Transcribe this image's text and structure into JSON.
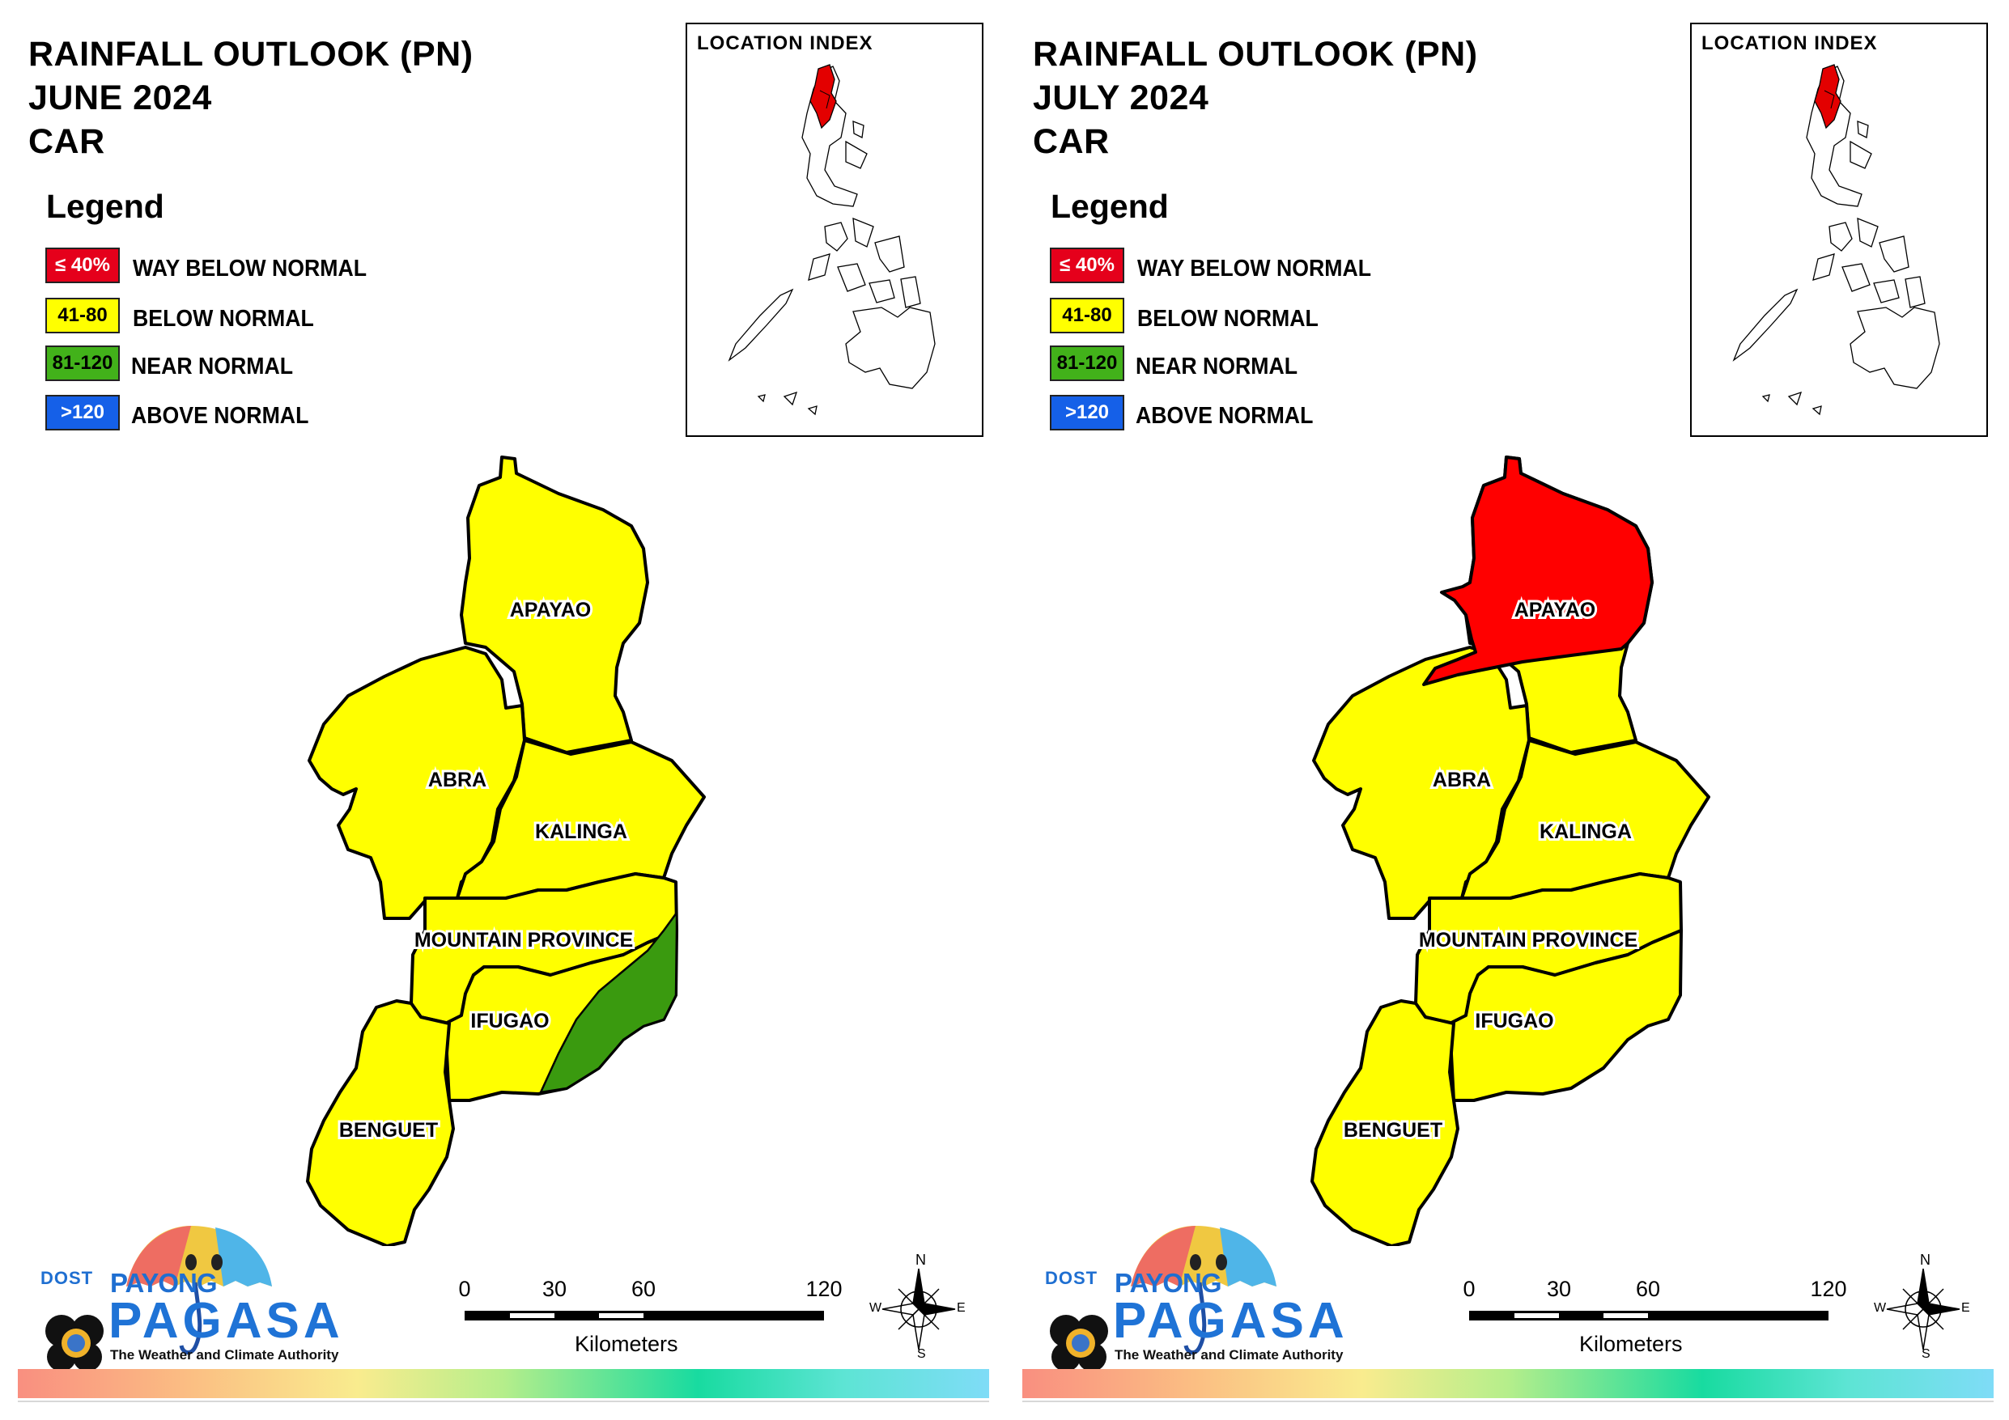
{
  "colors": {
    "way_below": "#ff0000",
    "below": "#ffff00",
    "near": "#41a516",
    "above": "#1560e8",
    "near_map": "#3a9a0f",
    "border": "#000000"
  },
  "legend": {
    "title": "Legend",
    "items": [
      {
        "range": "≤ 40%",
        "label": "WAY BELOW NORMAL",
        "color": "#e5001b",
        "text_color": "#ffffff"
      },
      {
        "range": "41-80",
        "label": "BELOW NORMAL",
        "color": "#ffff00",
        "text_color": "#000000"
      },
      {
        "range": "81-120",
        "label": "NEAR NORMAL",
        "color": "#42b21a",
        "text_color": "#000000"
      },
      {
        "range": ">120",
        "label": "ABOVE NORMAL",
        "color": "#1560e8",
        "text_color": "#ffffff"
      }
    ]
  },
  "inset": {
    "title": "LOCATION INDEX"
  },
  "panels": [
    {
      "title_line1": "RAINFALL OUTLOOK (PN)",
      "title_line2": "JUNE 2024",
      "title_line3": "CAR",
      "provinces": {
        "apayao": "below",
        "abra": "below",
        "kalinga": "below",
        "mountain_province": "below",
        "ifugao": "below",
        "benguet": "below"
      },
      "special_areas": [
        "eastern Mountain Province / Ifugao: near normal"
      ]
    },
    {
      "title_line1": "RAINFALL OUTLOOK (PN)",
      "title_line2": "JULY 2024",
      "title_line3": "CAR",
      "provinces": {
        "apayao": "below",
        "abra": "below",
        "kalinga": "below",
        "mountain_province": "below",
        "ifugao": "below",
        "benguet": "below"
      },
      "special_areas": [
        "northern Apayao and northern tip of Abra: way below normal"
      ]
    }
  ],
  "province_labels": {
    "apayao": "APAYAO",
    "abra": "ABRA",
    "kalinga": "KALINGA",
    "mountain_province": "MOUNTAIN PROVINCE",
    "ifugao": "IFUGAO",
    "benguet": "BENGUET"
  },
  "scalebar": {
    "ticks": [
      "0",
      "30",
      "60",
      "120"
    ],
    "unit": "Kilometers"
  },
  "compass": {
    "n": "N",
    "s": "S",
    "e": "E",
    "w": "W"
  },
  "logo": {
    "dost": "DOST",
    "payong": "PAYONG",
    "pagasa": "PAGASA",
    "tagline": "The Weather and Climate Authority"
  }
}
